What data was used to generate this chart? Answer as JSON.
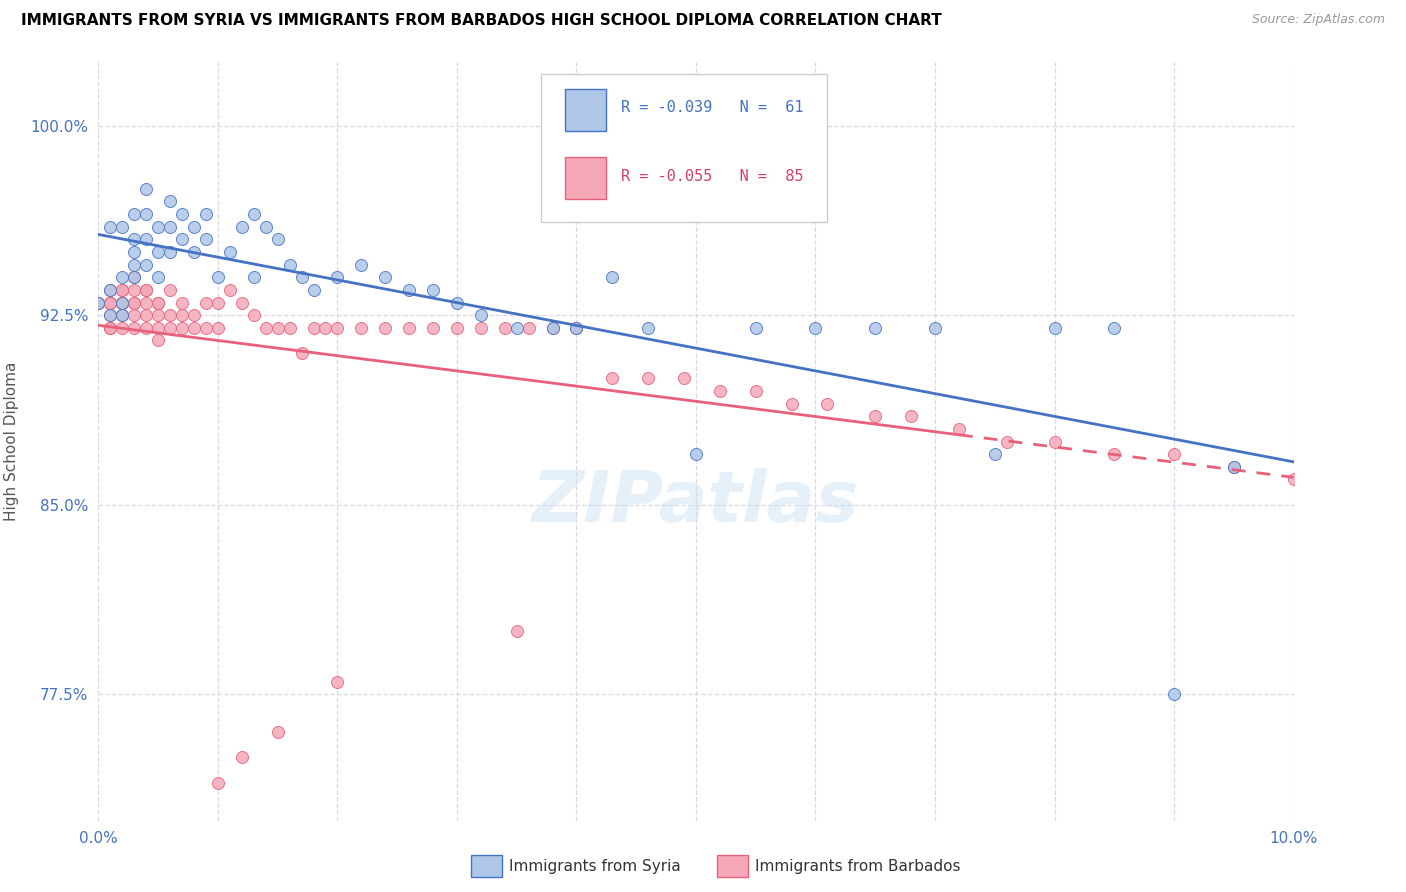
{
  "title": "IMMIGRANTS FROM SYRIA VS IMMIGRANTS FROM BARBADOS HIGH SCHOOL DIPLOMA CORRELATION CHART",
  "source": "Source: ZipAtlas.com",
  "ylabel": "High School Diploma",
  "legend_syria_R": "R = -0.039",
  "legend_syria_N": "N =  61",
  "legend_barbados_R": "R = -0.055",
  "legend_barbados_N": "N =  85",
  "color_syria": "#aec6e8",
  "color_barbados": "#f4a8b8",
  "color_syria_line": "#4472c4",
  "color_barbados_line": "#e8607a",
  "legend_bottom_syria": "Immigrants from Syria",
  "legend_bottom_barbados": "Immigrants from Barbados",
  "syria_x": [
    0.0,
    0.001,
    0.001,
    0.001,
    0.002,
    0.002,
    0.002,
    0.002,
    0.003,
    0.003,
    0.003,
    0.003,
    0.003,
    0.004,
    0.004,
    0.004,
    0.004,
    0.005,
    0.005,
    0.005,
    0.006,
    0.006,
    0.006,
    0.007,
    0.007,
    0.008,
    0.008,
    0.009,
    0.009,
    0.01,
    0.011,
    0.012,
    0.013,
    0.013,
    0.014,
    0.015,
    0.016,
    0.017,
    0.018,
    0.02,
    0.022,
    0.024,
    0.026,
    0.028,
    0.03,
    0.032,
    0.035,
    0.038,
    0.04,
    0.043,
    0.046,
    0.05,
    0.055,
    0.06,
    0.065,
    0.07,
    0.075,
    0.08,
    0.085,
    0.09,
    0.095
  ],
  "syria_y": [
    0.93,
    0.935,
    0.96,
    0.925,
    0.94,
    0.93,
    0.925,
    0.96,
    0.965,
    0.955,
    0.95,
    0.945,
    0.94,
    0.975,
    0.965,
    0.955,
    0.945,
    0.96,
    0.95,
    0.94,
    0.97,
    0.96,
    0.95,
    0.965,
    0.955,
    0.96,
    0.95,
    0.965,
    0.955,
    0.94,
    0.95,
    0.96,
    0.94,
    0.965,
    0.96,
    0.955,
    0.945,
    0.94,
    0.935,
    0.94,
    0.945,
    0.94,
    0.935,
    0.935,
    0.93,
    0.925,
    0.92,
    0.92,
    0.92,
    0.94,
    0.92,
    0.87,
    0.92,
    0.92,
    0.92,
    0.92,
    0.87,
    0.92,
    0.92,
    0.775,
    0.865
  ],
  "barbados_x": [
    0.0,
    0.0,
    0.0,
    0.001,
    0.001,
    0.001,
    0.001,
    0.001,
    0.001,
    0.001,
    0.002,
    0.002,
    0.002,
    0.002,
    0.002,
    0.002,
    0.003,
    0.003,
    0.003,
    0.003,
    0.003,
    0.003,
    0.004,
    0.004,
    0.004,
    0.004,
    0.004,
    0.005,
    0.005,
    0.005,
    0.005,
    0.005,
    0.006,
    0.006,
    0.006,
    0.007,
    0.007,
    0.007,
    0.008,
    0.008,
    0.009,
    0.009,
    0.01,
    0.01,
    0.011,
    0.012,
    0.013,
    0.014,
    0.015,
    0.016,
    0.017,
    0.018,
    0.019,
    0.02,
    0.022,
    0.024,
    0.026,
    0.028,
    0.03,
    0.032,
    0.034,
    0.036,
    0.038,
    0.04,
    0.043,
    0.046,
    0.049,
    0.052,
    0.055,
    0.058,
    0.061,
    0.065,
    0.068,
    0.072,
    0.076,
    0.08,
    0.085,
    0.09,
    0.095,
    0.1,
    0.035,
    0.02,
    0.015,
    0.012,
    0.01
  ],
  "barbados_y": [
    0.93,
    0.93,
    0.93,
    0.93,
    0.93,
    0.93,
    0.925,
    0.92,
    0.92,
    0.935,
    0.935,
    0.93,
    0.93,
    0.925,
    0.92,
    0.935,
    0.94,
    0.935,
    0.93,
    0.925,
    0.92,
    0.93,
    0.935,
    0.93,
    0.925,
    0.92,
    0.935,
    0.93,
    0.925,
    0.92,
    0.915,
    0.93,
    0.935,
    0.925,
    0.92,
    0.93,
    0.925,
    0.92,
    0.925,
    0.92,
    0.93,
    0.92,
    0.93,
    0.92,
    0.935,
    0.93,
    0.925,
    0.92,
    0.92,
    0.92,
    0.91,
    0.92,
    0.92,
    0.92,
    0.92,
    0.92,
    0.92,
    0.92,
    0.92,
    0.92,
    0.92,
    0.92,
    0.92,
    0.92,
    0.9,
    0.9,
    0.9,
    0.895,
    0.895,
    0.89,
    0.89,
    0.885,
    0.885,
    0.88,
    0.875,
    0.875,
    0.87,
    0.87,
    0.865,
    0.86,
    0.8,
    0.78,
    0.76,
    0.75,
    0.74
  ],
  "xlim": [
    0.0,
    0.1
  ],
  "ylim": [
    0.725,
    1.025
  ],
  "ytick_vals": [
    0.775,
    0.85,
    0.925,
    1.0
  ],
  "ytick_labels": [
    "77.5%",
    "85.0%",
    "92.5%",
    "100.0%"
  ],
  "xtick_vals": [
    0.0,
    0.01,
    0.02,
    0.03,
    0.04,
    0.05,
    0.06,
    0.07,
    0.08,
    0.09,
    0.1
  ],
  "xtick_labels": [
    "0.0%",
    "",
    "",
    "",
    "",
    "",
    "",
    "",
    "",
    "",
    "10.0%"
  ],
  "background_color": "#ffffff",
  "grid_color": "#d8d8e8"
}
